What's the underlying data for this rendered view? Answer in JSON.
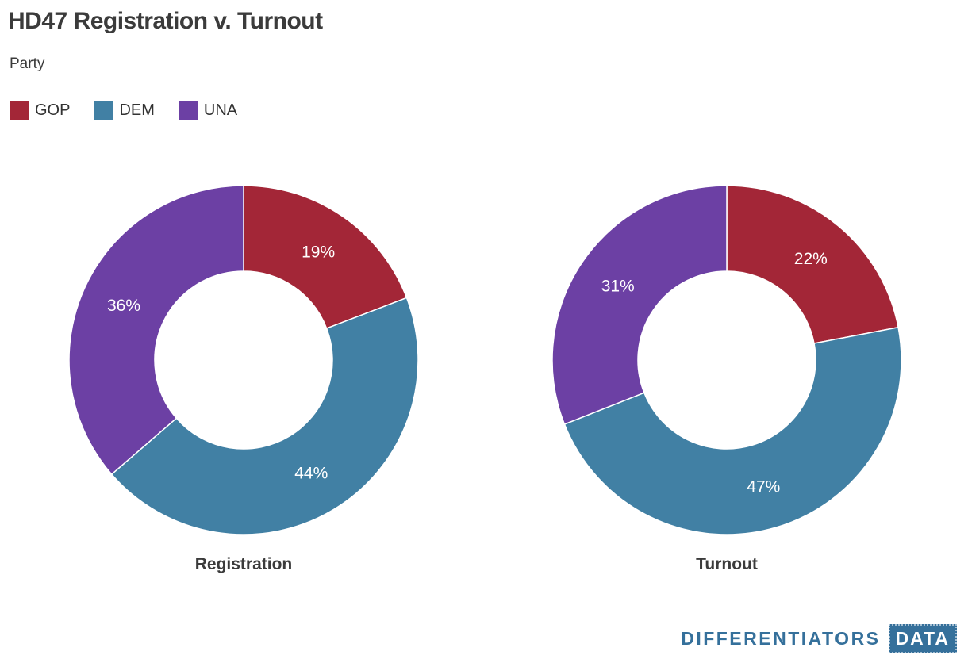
{
  "header": {
    "title": "HD47 Registration v. Turnout",
    "subtitle": "Party"
  },
  "legend": {
    "title": "Party",
    "items": [
      {
        "label": "GOP",
        "color": "#a32637"
      },
      {
        "label": "DEM",
        "color": "#4180a4"
      },
      {
        "label": "UNA",
        "color": "#6c40a4"
      }
    ]
  },
  "chart_data": {
    "type": "pie",
    "title": "HD47 Registration v. Turnout",
    "legend_title": "Party",
    "donut": true,
    "start_angle_deg": 0,
    "direction": "clockwise",
    "legend_position": "top-left",
    "categories": [
      "GOP",
      "DEM",
      "UNA"
    ],
    "colors": [
      "#a32637",
      "#4180a4",
      "#6c40a4"
    ],
    "slice_label_color": "#ffffff",
    "charts": [
      {
        "label": "Registration",
        "values": [
          19,
          44,
          36
        ],
        "labels": [
          "19%",
          "44%",
          "36%"
        ]
      },
      {
        "label": "Turnout",
        "values": [
          22,
          47,
          31
        ],
        "labels": [
          "22%",
          "47%",
          "31%"
        ]
      }
    ]
  },
  "logo": {
    "text": "DIFFERENTIATORS",
    "badge": "DATA",
    "color": "#35709b"
  }
}
